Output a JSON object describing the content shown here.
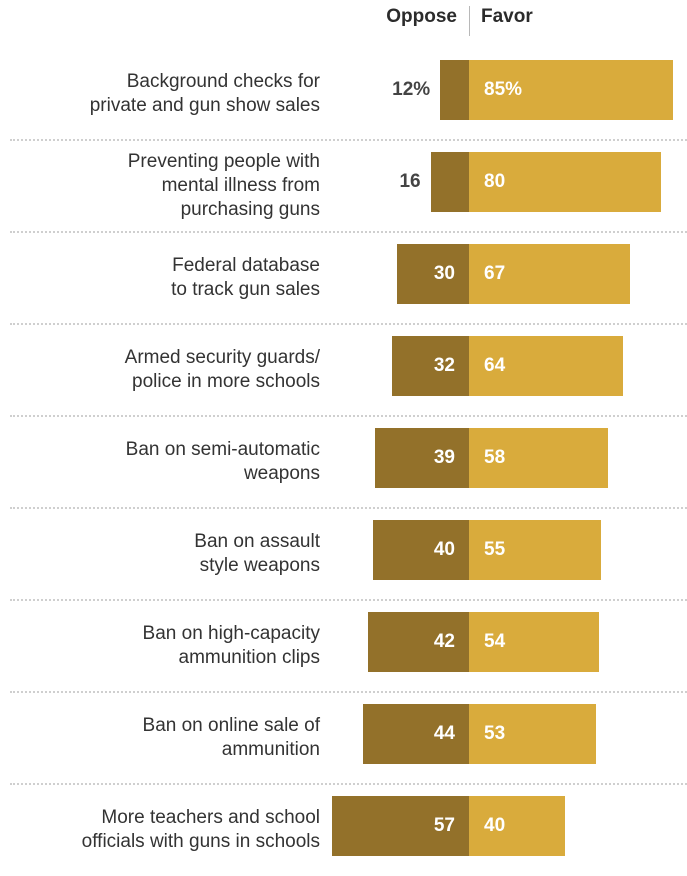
{
  "chart_data": {
    "type": "bar",
    "series_labels": {
      "oppose": "Oppose",
      "favor": "Favor"
    },
    "categories": [
      "Background checks for\nprivate and gun show sales",
      "Preventing people with\nmental illness from\npurchasing guns",
      "Federal database\nto track gun sales",
      "Armed security guards/\npolice in more schools",
      "Ban on semi-automatic\nweapons",
      "Ban on assault\nstyle weapons",
      "Ban on high-capacity\nammunition clips",
      "Ban on online sale of\nammunition",
      "More teachers and school\nofficials with guns in schools"
    ],
    "series": [
      {
        "name": "Oppose",
        "values": [
          12,
          16,
          30,
          32,
          39,
          40,
          42,
          44,
          57
        ],
        "labels": [
          "12%",
          "16",
          "30",
          "32",
          "39",
          "40",
          "42",
          "44",
          "57"
        ]
      },
      {
        "name": "Favor",
        "values": [
          85,
          80,
          67,
          64,
          58,
          55,
          54,
          53,
          40
        ],
        "labels": [
          "85%",
          "80",
          "67",
          "64",
          "58",
          "55",
          "54",
          "53",
          "40"
        ]
      }
    ],
    "colors": {
      "oppose": "#93712a",
      "favor": "#d9ab3c"
    }
  }
}
